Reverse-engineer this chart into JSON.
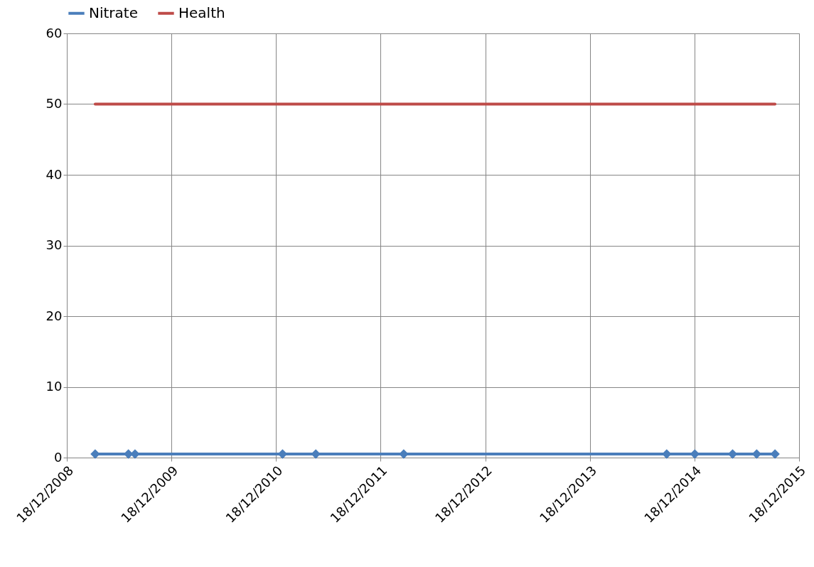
{
  "chart_data": {
    "type": "line",
    "series": [
      {
        "name": "Nitrate",
        "color": "#4a7ebb",
        "marker": "diamond",
        "x": [
          "2009-03-27",
          "2009-07-21",
          "2009-08-13",
          "2011-01-10",
          "2011-05-06",
          "2012-03-08",
          "2014-09-12",
          "2014-12-19",
          "2015-04-30",
          "2015-07-23",
          "2015-09-25"
        ],
        "values": [
          0.5,
          0.5,
          0.5,
          0.5,
          0.5,
          0.5,
          0.5,
          0.5,
          0.5,
          0.5,
          0.5
        ]
      },
      {
        "name": "Health",
        "color": "#be4b48",
        "marker": "none",
        "x": [
          "2009-03-27",
          "2015-09-25"
        ],
        "values": [
          50,
          50
        ]
      }
    ],
    "xlim": [
      "2008-12-18",
      "2015-12-18"
    ],
    "xticks": [
      {
        "value": "2008-12-18",
        "label": "18/12/2008"
      },
      {
        "value": "2009-12-18",
        "label": "18/12/2009"
      },
      {
        "value": "2010-12-18",
        "label": "18/12/2010"
      },
      {
        "value": "2011-12-18",
        "label": "18/12/2011"
      },
      {
        "value": "2012-12-18",
        "label": "18/12/2012"
      },
      {
        "value": "2013-12-18",
        "label": "18/12/2013"
      },
      {
        "value": "2014-12-18",
        "label": "18/12/2014"
      },
      {
        "value": "2015-12-18",
        "label": "18/12/2015"
      }
    ],
    "ylim": [
      0,
      60
    ],
    "yticks": [
      0,
      10,
      20,
      30,
      40,
      50,
      60
    ],
    "grid": true,
    "legend": "top",
    "line_style": "solid"
  }
}
